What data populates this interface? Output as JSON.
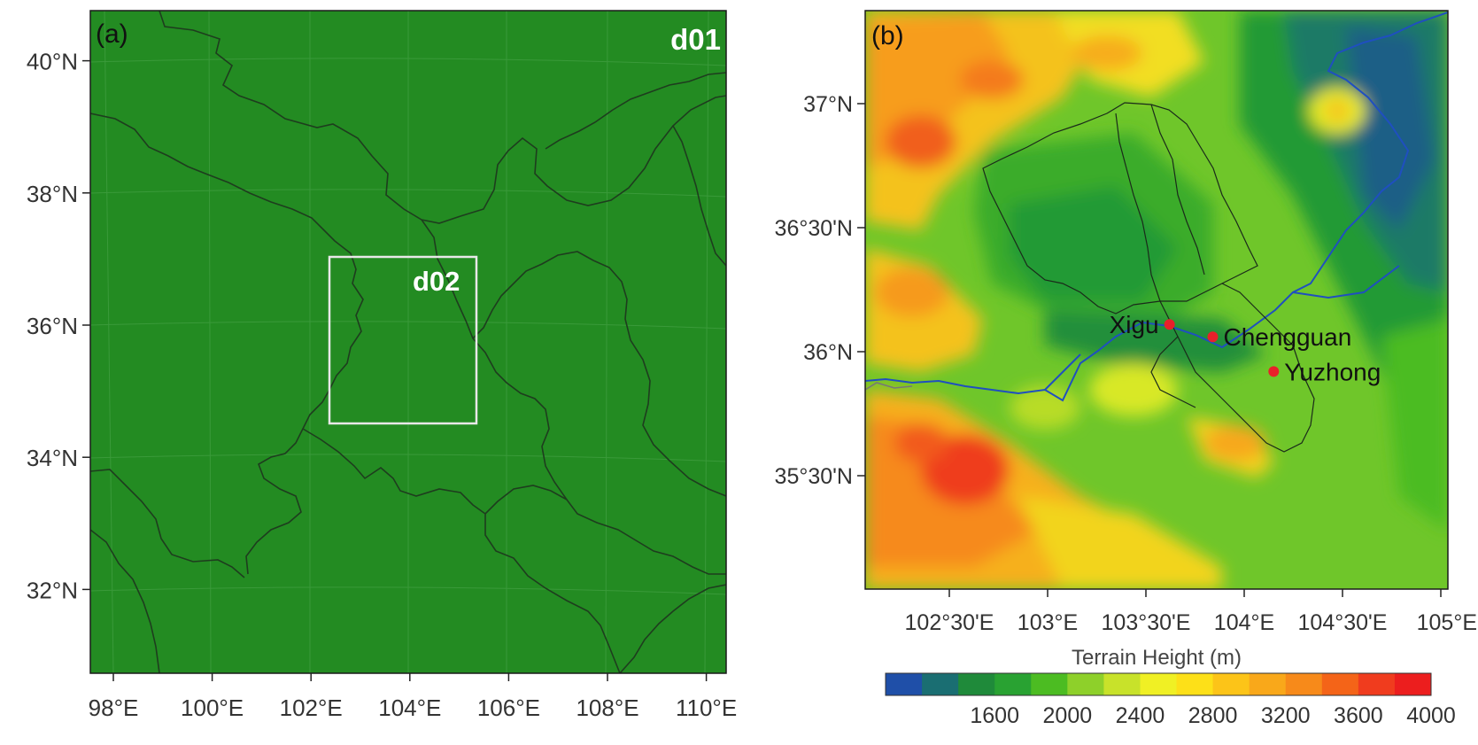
{
  "panel_a": {
    "label": "(a)",
    "domain_outer_label": "d01",
    "domain_inner_label": "d02",
    "lat_ticks": [
      {
        "value": 40,
        "label": "40°N"
      },
      {
        "value": 38,
        "label": "38°N"
      },
      {
        "value": 36,
        "label": "36°N"
      },
      {
        "value": 34,
        "label": "34°N"
      },
      {
        "value": 32,
        "label": "32°N"
      }
    ],
    "lon_ticks": [
      {
        "value": 98,
        "label": "98°E"
      },
      {
        "value": 100,
        "label": "100°E"
      },
      {
        "value": 102,
        "label": "102°E"
      },
      {
        "value": 104,
        "label": "104°E"
      },
      {
        "value": 106,
        "label": "106°E"
      },
      {
        "value": 108,
        "label": "108°E"
      },
      {
        "value": 110,
        "label": "110°E"
      }
    ],
    "fill_color": "#238b22",
    "inner_box_color": "#e8e8e8"
  },
  "panel_b": {
    "label": "(b)",
    "lat_ticks": [
      {
        "value": 37.0,
        "label": "37°N"
      },
      {
        "value": 36.5,
        "label": "36°30'N"
      },
      {
        "value": 36.0,
        "label": "36°N"
      },
      {
        "value": 35.5,
        "label": "35°30'N"
      }
    ],
    "lon_ticks": [
      {
        "value": 102.5,
        "label": "102°30'E"
      },
      {
        "value": 103.0,
        "label": "103°E"
      },
      {
        "value": 103.5,
        "label": "103°30'E"
      },
      {
        "value": 104.0,
        "label": "104°E"
      },
      {
        "value": 104.5,
        "label": "104°30'E"
      },
      {
        "value": 105.0,
        "label": "105°E"
      }
    ],
    "sites": [
      {
        "name": "Xigu",
        "lon": 103.62,
        "lat": 36.11
      },
      {
        "name": "Chengguan",
        "lon": 103.84,
        "lat": 36.06
      },
      {
        "name": "Yuzhong",
        "lon": 104.15,
        "lat": 35.92
      }
    ],
    "site_color": "#e8202a",
    "colorbar": {
      "title": "Terrain Height  (m)",
      "tick_labels": [
        "1600",
        "2000",
        "2400",
        "2800",
        "3200",
        "3600",
        "4000"
      ],
      "colors": [
        "#1f4fa8",
        "#1a6e72",
        "#1f8a3a",
        "#29a232",
        "#4cbc22",
        "#8ed02a",
        "#c8e22a",
        "#f0f024",
        "#fde018",
        "#fcc418",
        "#f9a81a",
        "#f78a1a",
        "#f46418",
        "#f03c1e",
        "#ec1e1e"
      ]
    }
  }
}
